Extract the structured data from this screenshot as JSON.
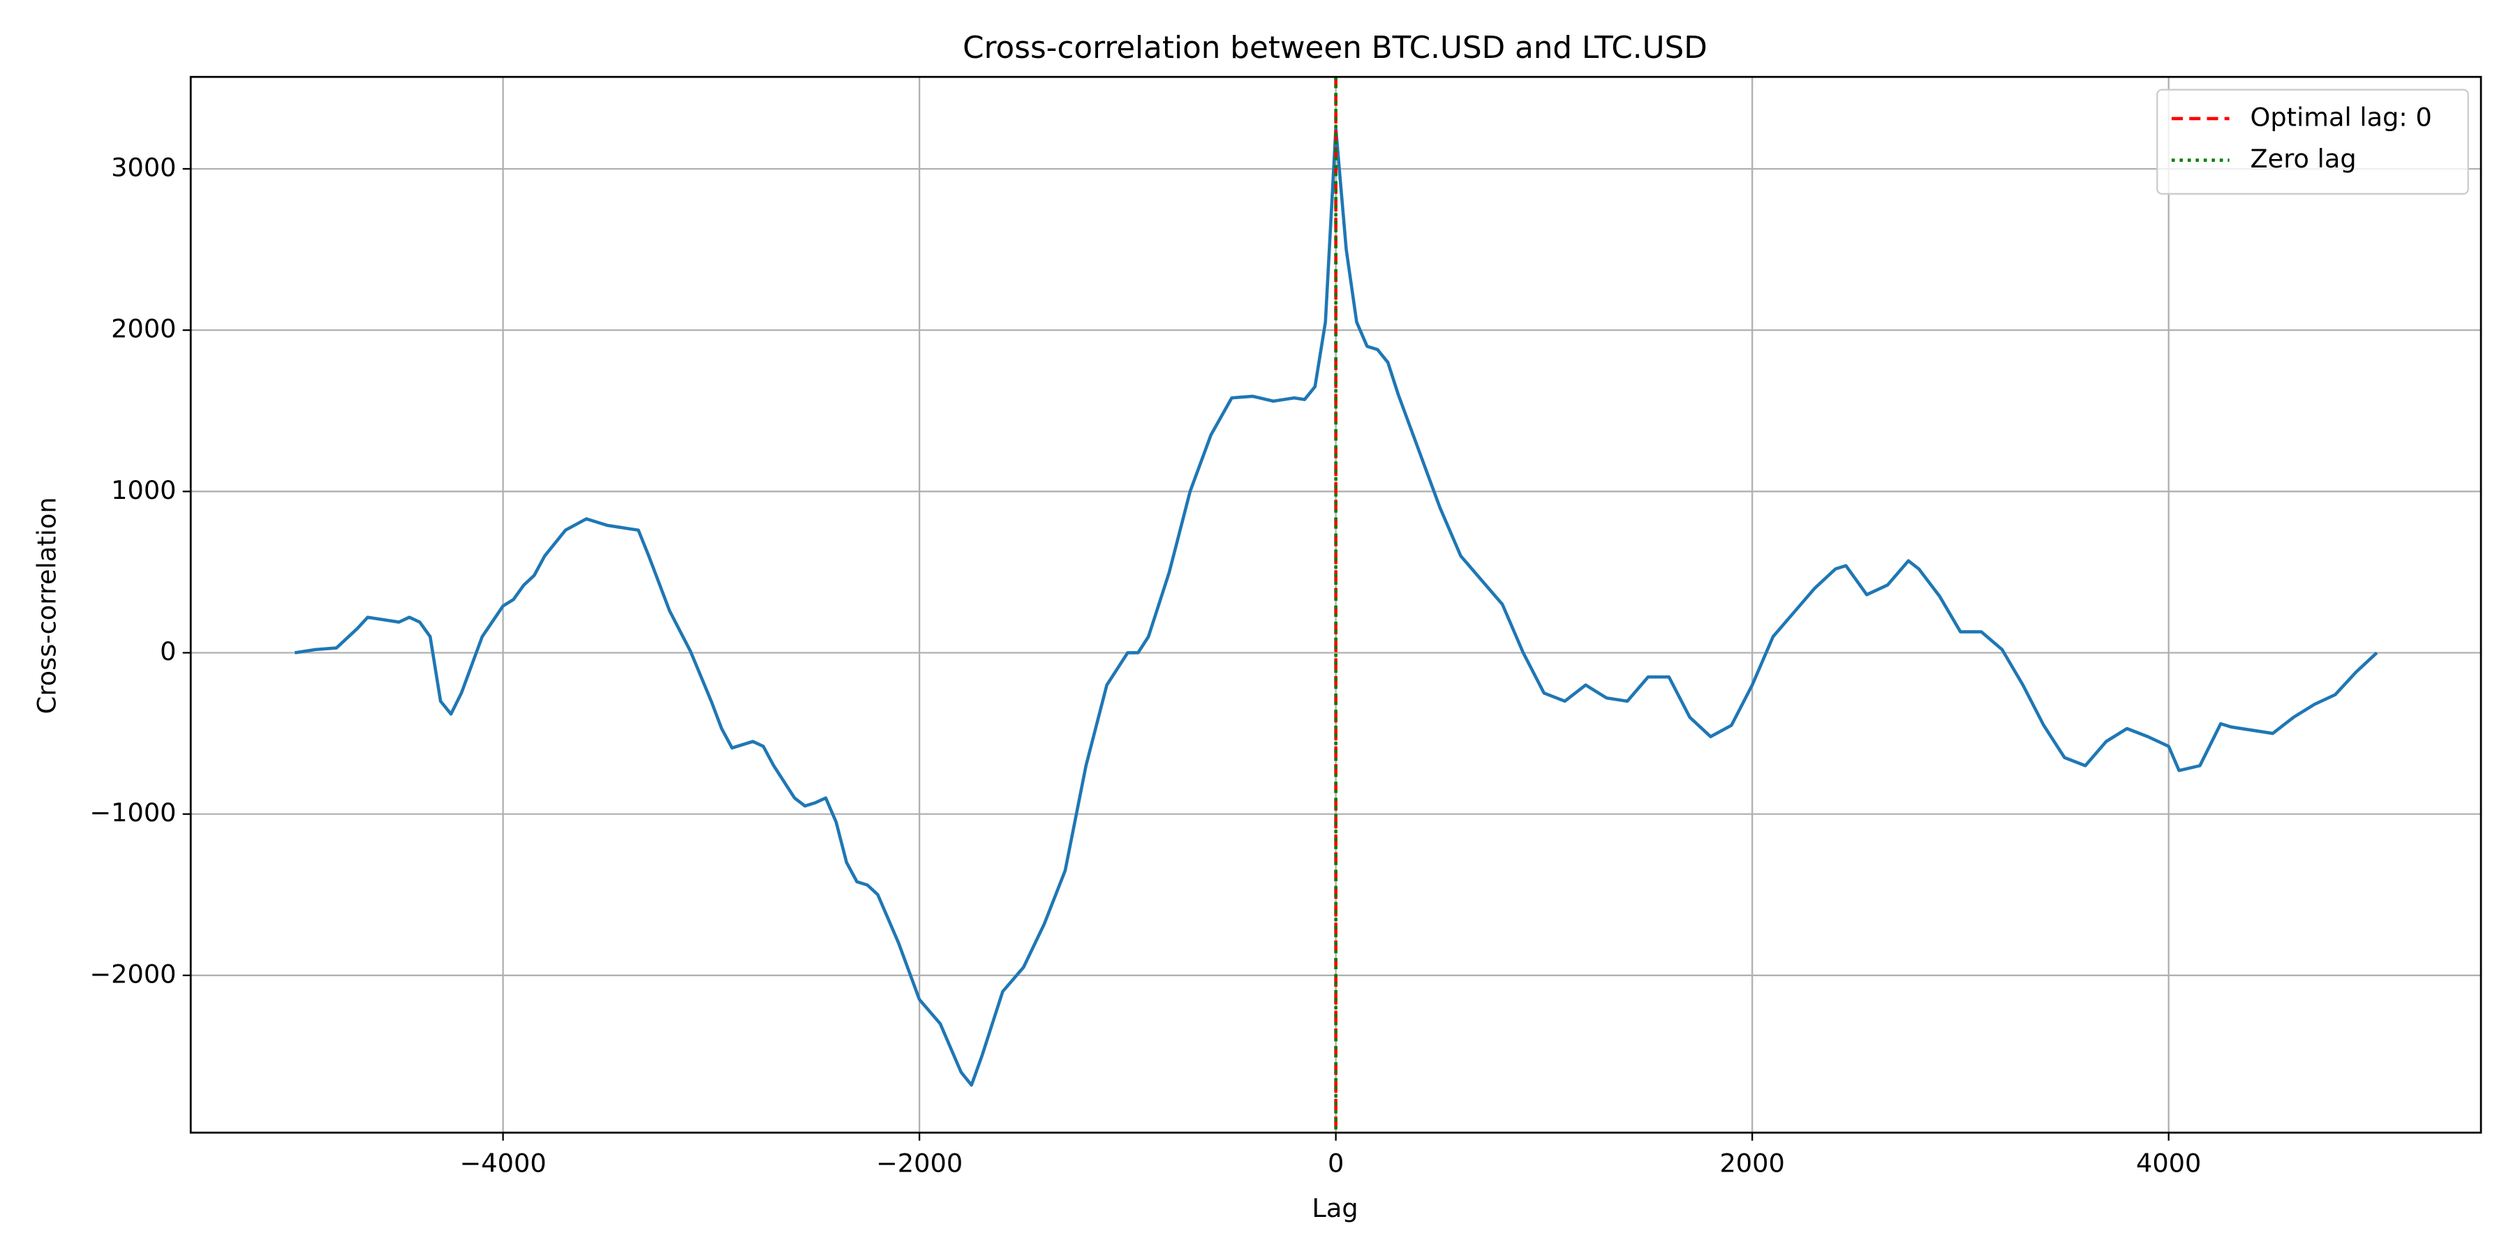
{
  "chart_data": {
    "type": "line",
    "title": "Cross-correlation between BTC.USD and LTC.USD",
    "x_label": "Lag",
    "y_label": "Cross-correlation",
    "x": [
      -5000,
      -4900,
      -4800,
      -4700,
      -4650,
      -4550,
      -4500,
      -4450,
      -4400,
      -4350,
      -4300,
      -4250,
      -4200,
      -4100,
      -4000,
      -3950,
      -3900,
      -3850,
      -3800,
      -3700,
      -3600,
      -3500,
      -3400,
      -3350,
      -3300,
      -3200,
      -3100,
      -3000,
      -2950,
      -2900,
      -2800,
      -2750,
      -2700,
      -2600,
      -2550,
      -2500,
      -2450,
      -2400,
      -2350,
      -2300,
      -2250,
      -2200,
      -2100,
      -2000,
      -1900,
      -1850,
      -1800,
      -1750,
      -1700,
      -1600,
      -1500,
      -1400,
      -1300,
      -1200,
      -1100,
      -1000,
      -950,
      -900,
      -800,
      -700,
      -600,
      -500,
      -400,
      -300,
      -200,
      -150,
      -100,
      -50,
      0,
      50,
      100,
      150,
      200,
      250,
      300,
      400,
      500,
      600,
      700,
      800,
      900,
      1000,
      1100,
      1200,
      1300,
      1400,
      1500,
      1600,
      1700,
      1800,
      1900,
      2000,
      2100,
      2200,
      2300,
      2400,
      2450,
      2550,
      2650,
      2750,
      2800,
      2900,
      3000,
      3100,
      3200,
      3300,
      3400,
      3500,
      3600,
      3700,
      3800,
      3900,
      4000,
      4050,
      4150,
      4250,
      4300,
      4400,
      4500,
      4600,
      4700,
      4800,
      4900,
      5000
    ],
    "series": [
      {
        "color": "#1f77b4",
        "values": [
          0,
          20,
          30,
          150,
          220,
          200,
          190,
          220,
          190,
          100,
          -300,
          -380,
          -250,
          100,
          290,
          330,
          420,
          480,
          600,
          760,
          830,
          790,
          770,
          760,
          600,
          260,
          10,
          -300,
          -470,
          -590,
          -550,
          -580,
          -700,
          -900,
          -950,
          -930,
          -900,
          -1050,
          -1300,
          -1420,
          -1440,
          -1500,
          -1800,
          -2150,
          -2300,
          -2450,
          -2600,
          -2680,
          -2500,
          -2100,
          -1950,
          -1680,
          -1350,
          -700,
          -200,
          0,
          0,
          100,
          500,
          1000,
          1350,
          1580,
          1590,
          1560,
          1580,
          1570,
          1650,
          2050,
          3250,
          2500,
          2050,
          1900,
          1880,
          1800,
          1600,
          1250,
          900,
          600,
          450,
          300,
          0,
          -250,
          -300,
          -200,
          -280,
          -300,
          -150,
          -150,
          -400,
          -520,
          -450,
          -200,
          100,
          250,
          400,
          520,
          540,
          360,
          420,
          570,
          520,
          350,
          130,
          130,
          20,
          -200,
          -450,
          -650,
          -700,
          -550,
          -470,
          -520,
          -580,
          -730,
          -700,
          -440,
          -460,
          -480,
          -500,
          -400,
          -320,
          -260,
          -120,
          0
        ]
      }
    ],
    "vlines": [
      {
        "x": 0,
        "label": "Optimal lag: 0",
        "color": "red",
        "style": "dashed"
      },
      {
        "x": 0,
        "label": "Zero lag",
        "color": "green",
        "style": "dotted"
      }
    ],
    "xlim": [
      -5500,
      5500
    ],
    "ylim": [
      -2975,
      3570
    ],
    "xticks": [
      {
        "value": -4000,
        "label": "−4000"
      },
      {
        "value": -2000,
        "label": "−2000"
      },
      0,
      2000,
      4000
    ],
    "yticks": [
      {
        "value": -2000,
        "label": "−2000"
      },
      {
        "value": -1000,
        "label": "−1000"
      },
      0,
      1000,
      2000,
      3000
    ],
    "grid": true,
    "legend": "upper right"
  }
}
